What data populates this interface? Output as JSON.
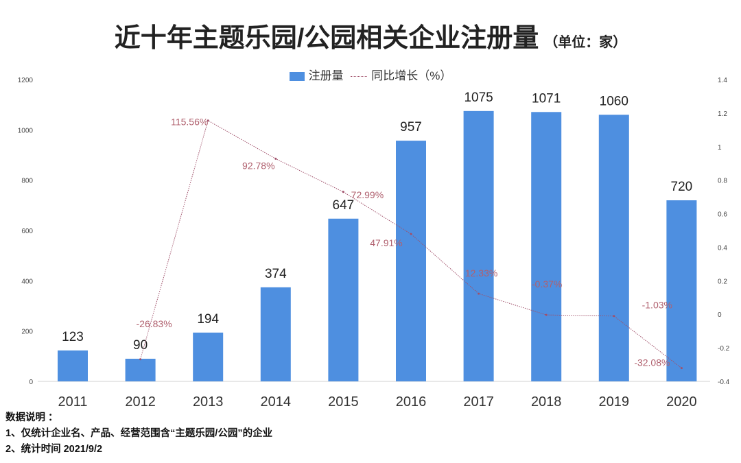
{
  "title": "近十年主题乐园/公园相关企业注册量",
  "unit": "（单位：家）",
  "legend": {
    "bar": "注册量",
    "line": "同比增长（%）"
  },
  "colors": {
    "bar": "#4e8fe0",
    "line": "#a0506a",
    "line_label": "#b0606e"
  },
  "chart_data": {
    "type": "bar",
    "categories": [
      "2011",
      "2012",
      "2013",
      "2014",
      "2015",
      "2016",
      "2017",
      "2018",
      "2019",
      "2020"
    ],
    "series": [
      {
        "name": "注册量",
        "type": "bar",
        "axis": "left",
        "values": [
          123,
          90,
          194,
          374,
          647,
          957,
          1075,
          1071,
          1060,
          720
        ],
        "labels": [
          "123",
          "90",
          "194",
          "374",
          "647",
          "957",
          "1075",
          "1071",
          "1060",
          "720"
        ]
      },
      {
        "name": "同比增长（%）",
        "type": "line",
        "axis": "right",
        "values": [
          null,
          -0.2683,
          1.1556,
          0.9278,
          0.7299,
          0.4791,
          0.1233,
          -0.0037,
          -0.0103,
          -0.3208
        ],
        "labels": [
          "",
          "-26.83%",
          "115.56%",
          "92.78%",
          "72.99%",
          "47.91%",
          "12.33%",
          "-0.37%",
          "-1.03%",
          "-32.08%"
        ]
      }
    ],
    "left_axis": {
      "range": [
        0,
        1200
      ],
      "ticks": [
        "0",
        "200",
        "400",
        "600",
        "800",
        "1000",
        "1200"
      ]
    },
    "right_axis": {
      "range": [
        -0.4,
        1.4
      ],
      "ticks": [
        "-0.4",
        "-0.2",
        "0",
        "0.2",
        "0.4",
        "0.6",
        "0.8",
        "1",
        "1.2",
        "1.4"
      ]
    },
    "legend_position": "top-center",
    "grid": false
  },
  "notes": {
    "heading": "数据说明 ：",
    "items": [
      "1、仅统计企业名、产品、经营范围含“主题乐园/公园”的企业",
      "2、统计时间 2021/9/2"
    ]
  }
}
